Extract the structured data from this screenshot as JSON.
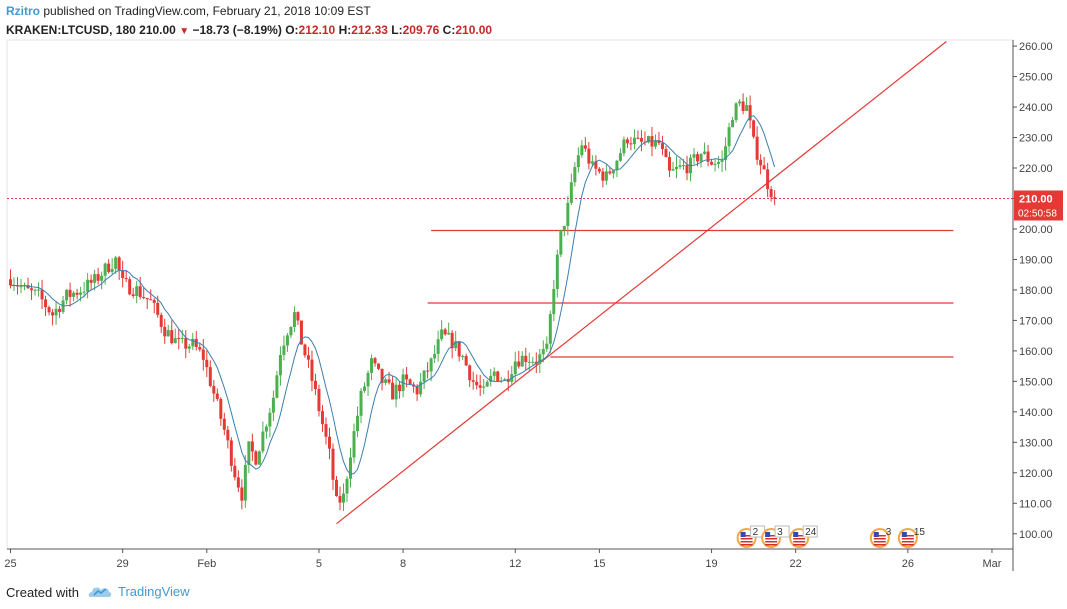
{
  "header": {
    "author": "Rzitro",
    "published_text": "published on TradingView.com, February 21, 2018 10:09 EST",
    "symbol": "KRAKEN:LTCUSD, 180",
    "last": "210.00",
    "change": "−18.73 (−8.19%)",
    "open_label": "O:",
    "open": "212.10",
    "high_label": "H:",
    "high": "212.33",
    "low_label": "L:",
    "low": "209.76",
    "close_label": "C:",
    "close": "210.00"
  },
  "price_tag": {
    "price": "210.00",
    "timer": "02:50:58"
  },
  "footer": {
    "created_with": "Created with",
    "brand": "TradingView"
  },
  "colors": {
    "up": "#4caf50",
    "down": "#e53935",
    "ma": "#3b7fae",
    "lines": "#e53935",
    "axis_text": "#444444"
  },
  "chart_data": {
    "type": "candlestick",
    "ylim": [
      95,
      262
    ],
    "xlim": [
      -1,
      286
    ],
    "y_ticks": [
      "100.00",
      "110.00",
      "120.00",
      "130.00",
      "140.00",
      "150.00",
      "160.00",
      "170.00",
      "180.00",
      "190.00",
      "200.00",
      "210.00",
      "220.00",
      "230.00",
      "240.00",
      "250.00",
      "260.00"
    ],
    "x_ticks": [
      {
        "label": "25",
        "x": 0
      },
      {
        "label": "29",
        "x": 32
      },
      {
        "label": "Feb",
        "x": 56
      },
      {
        "label": "5",
        "x": 88
      },
      {
        "label": "8",
        "x": 112
      },
      {
        "label": "12",
        "x": 144
      },
      {
        "label": "15",
        "x": 168
      },
      {
        "label": "19",
        "x": 200
      },
      {
        "label": "22",
        "x": 224
      },
      {
        "label": "26",
        "x": 256
      },
      {
        "label": "Mar",
        "x": 280
      }
    ],
    "anchors": [
      [
        0,
        184
      ],
      [
        4,
        180
      ],
      [
        8,
        178
      ],
      [
        12,
        172
      ],
      [
        16,
        178
      ],
      [
        20,
        180
      ],
      [
        24,
        183
      ],
      [
        28,
        188
      ],
      [
        30,
        190
      ],
      [
        32,
        182
      ],
      [
        36,
        180
      ],
      [
        40,
        176
      ],
      [
        44,
        167
      ],
      [
        48,
        162
      ],
      [
        52,
        162
      ],
      [
        55,
        158
      ],
      [
        58,
        146
      ],
      [
        61,
        134
      ],
      [
        64,
        120
      ],
      [
        66,
        113
      ],
      [
        68,
        128
      ],
      [
        70,
        125
      ],
      [
        72,
        133
      ],
      [
        75,
        145
      ],
      [
        77,
        160
      ],
      [
        79,
        167
      ],
      [
        81,
        172
      ],
      [
        83,
        163
      ],
      [
        85,
        155
      ],
      [
        87,
        146
      ],
      [
        89,
        136
      ],
      [
        91,
        126
      ],
      [
        93,
        110
      ],
      [
        95,
        112
      ],
      [
        97,
        127
      ],
      [
        100,
        145
      ],
      [
        103,
        156
      ],
      [
        106,
        150
      ],
      [
        109,
        146
      ],
      [
        112,
        150
      ],
      [
        116,
        147
      ],
      [
        120,
        156
      ],
      [
        123,
        165
      ],
      [
        126,
        163
      ],
      [
        129,
        158
      ],
      [
        132,
        150
      ],
      [
        135,
        146
      ],
      [
        138,
        153
      ],
      [
        141,
        150
      ],
      [
        144,
        157
      ],
      [
        147,
        158
      ],
      [
        150,
        157
      ],
      [
        153,
        160
      ],
      [
        155,
        182
      ],
      [
        157,
        198
      ],
      [
        159,
        207
      ],
      [
        161,
        220
      ],
      [
        163,
        228
      ],
      [
        166,
        220
      ],
      [
        170,
        217
      ],
      [
        173,
        223
      ],
      [
        176,
        230
      ],
      [
        179,
        228
      ],
      [
        182,
        228
      ],
      [
        185,
        228
      ],
      [
        188,
        218
      ],
      [
        191,
        220
      ],
      [
        194,
        221
      ],
      [
        197,
        225
      ],
      [
        200,
        222
      ],
      [
        203,
        222
      ],
      [
        206,
        238
      ],
      [
        208,
        241
      ],
      [
        210,
        240
      ],
      [
        212,
        228
      ],
      [
        214,
        222
      ],
      [
        216,
        215
      ],
      [
        218,
        210
      ]
    ],
    "support_lines": [
      {
        "x1": 120,
        "x2": 269,
        "y": 199.5
      },
      {
        "x1": 119,
        "x2": 269,
        "y": 175.7
      },
      {
        "x1": 154,
        "x2": 269,
        "y": 158.0
      }
    ],
    "trendline": {
      "x1": 93,
      "y1": 103.3,
      "x2": 267,
      "y2": 261.5
    },
    "current_price": 210.0,
    "ma_period": 8,
    "events": [
      {
        "label": "2",
        "x": 210,
        "selected": true
      },
      {
        "label": "3",
        "x": 217,
        "selected": true
      },
      {
        "label": "24",
        "x": 225,
        "selected": true
      },
      {
        "label": "3",
        "x": 248,
        "selected": false
      },
      {
        "label": "15",
        "x": 256,
        "selected": false
      }
    ]
  }
}
